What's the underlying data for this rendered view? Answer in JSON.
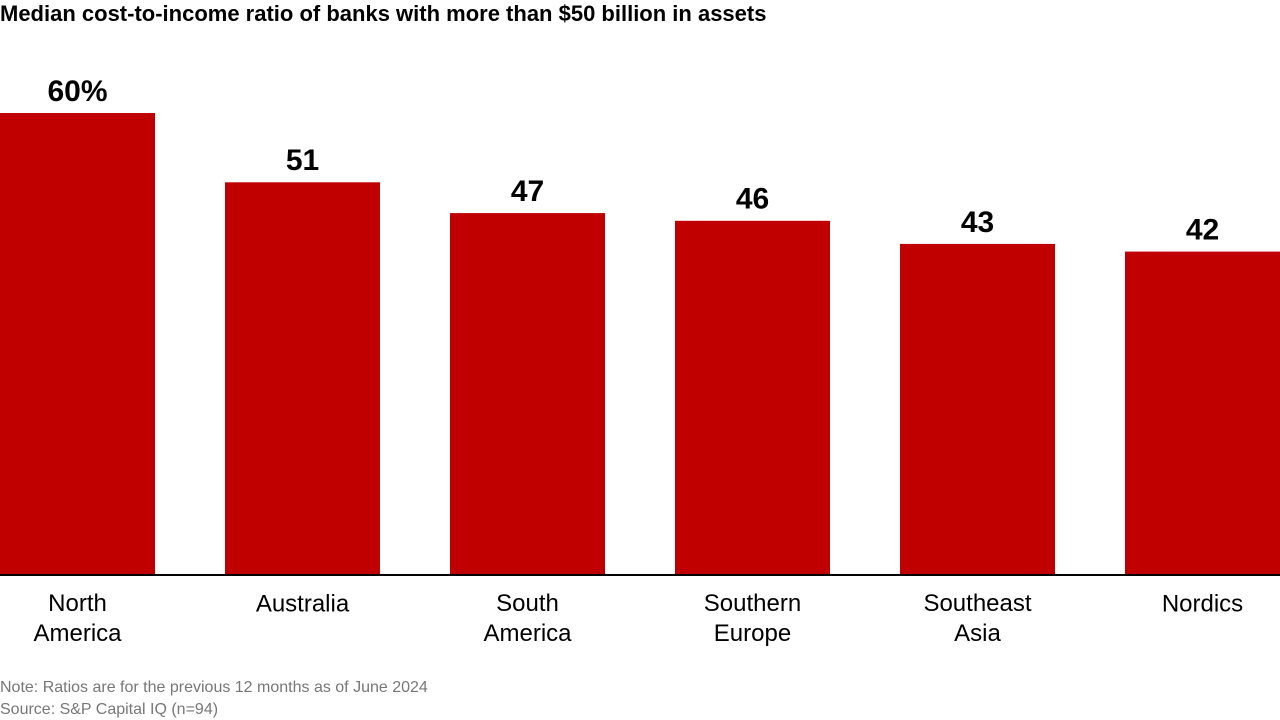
{
  "chart_data": {
    "type": "bar",
    "title": "Median cost-to-income ratio of banks with more than $50 billion in assets",
    "categories": [
      "North America",
      "Australia",
      "South America",
      "Southern Europe",
      "Southeast Asia",
      "Nordics"
    ],
    "values": [
      60,
      51,
      47,
      46,
      43,
      42
    ],
    "value_labels": [
      "60%",
      "51",
      "47",
      "46",
      "43",
      "42"
    ],
    "color": "#c00000",
    "ylim": [
      0,
      60
    ],
    "note": "Note: Ratios are for the previous 12 months as of June 2024",
    "source": "Source: S&P Capital IQ (n=94)"
  }
}
